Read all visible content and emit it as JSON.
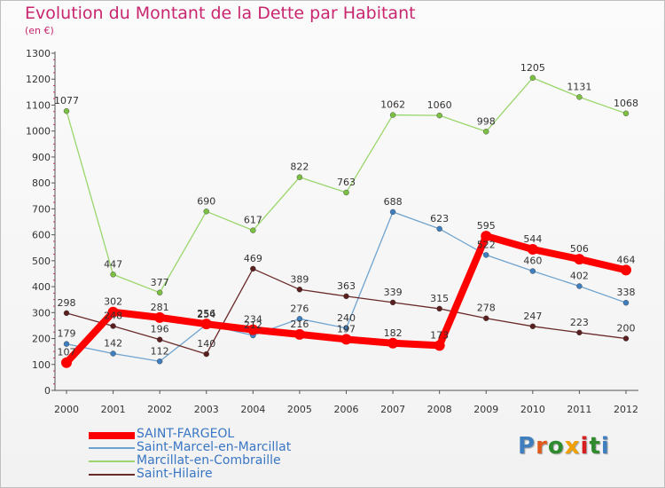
{
  "chart_data": {
    "type": "line",
    "title": "Evolution du Montant de la Dette par Habitant",
    "subtitle": "(en €)",
    "ylim": [
      0,
      1300
    ],
    "yticks": [
      0,
      100,
      200,
      300,
      400,
      500,
      600,
      700,
      800,
      900,
      1000,
      1100,
      1200,
      1300
    ],
    "x": [
      "2000",
      "2001",
      "2002",
      "2003",
      "2004",
      "2005",
      "2006",
      "2007",
      "2008",
      "2009",
      "2010",
      "2011",
      "2012"
    ],
    "grid": false,
    "legend_position": "bottom-left",
    "series": [
      {
        "name": "Marcillat-en-Combraille",
        "color": "#9ad66b",
        "marker": "#7cc043",
        "values": [
          1077,
          447,
          377,
          690,
          617,
          822,
          763,
          1062,
          1060,
          998,
          1205,
          1131,
          1068
        ]
      },
      {
        "name": "Saint-Marcel-en-Marcillat",
        "color": "#6fa3cf",
        "marker": "#3f7fbf",
        "values": [
          179,
          142,
          112,
          254,
          212,
          276,
          240,
          688,
          623,
          522,
          460,
          402,
          338
        ]
      },
      {
        "name": "Saint-Hilaire",
        "color": "#6b2a2a",
        "marker": "#5a1f1f",
        "values": [
          298,
          248,
          196,
          140,
          469,
          389,
          363,
          339,
          315,
          278,
          247,
          223,
          200
        ]
      },
      {
        "name": "SAINT-FARGEOL",
        "color": "#ff0000",
        "marker": "#ff0000",
        "values": [
          107,
          302,
          281,
          256,
          234,
          216,
          197,
          182,
          173,
          595,
          544,
          506,
          464
        ]
      }
    ],
    "data_labels": {
      "Marcillat-en-Combraille": [
        "1077",
        "447",
        "377",
        "690",
        "617",
        "822",
        "763",
        "1062",
        "1060",
        "998",
        "1205",
        "1131",
        "1068"
      ],
      "Saint-Marcel-en-Marcillat": [
        "179",
        "142",
        "112",
        "254",
        "212",
        "276",
        "240",
        "688",
        "623",
        "522",
        "460",
        "402",
        "338"
      ],
      "Saint-Hilaire": [
        "298",
        "248",
        "196",
        "140",
        "469",
        "389",
        "363",
        "339",
        "315",
        "278",
        "247",
        "223",
        "200"
      ],
      "SAINT-FARGEOL": [
        "107",
        "302",
        "281",
        "256",
        "234",
        "216",
        "197",
        "182",
        "173",
        "595",
        "544",
        "506",
        "464"
      ]
    }
  },
  "legend": {
    "items": [
      {
        "label": "SAINT-FARGEOL",
        "color": "#ff0000",
        "thick": true
      },
      {
        "label": "Saint-Marcel-en-Marcillat",
        "color": "#6fa3cf",
        "thick": false
      },
      {
        "label": "Marcillat-en-Combraille",
        "color": "#9ad66b",
        "thick": false
      },
      {
        "label": "Saint-Hilaire",
        "color": "#6b2a2a",
        "thick": false
      }
    ]
  },
  "logo": {
    "text": "Proxiti",
    "colors": [
      "#3f7fbf",
      "#e05a1e",
      "#2e8b2e",
      "#f0a000",
      "#d62020",
      "#2e8b2e",
      "#3f7fbf"
    ]
  }
}
